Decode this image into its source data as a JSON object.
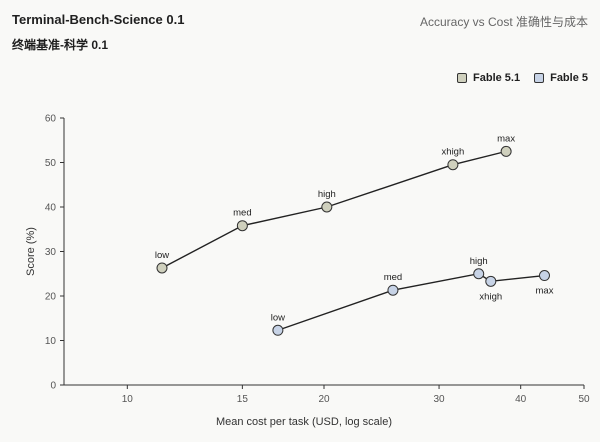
{
  "header": {
    "title": "Terminal-Bench-Science 0.1",
    "subtitle": "终端基准-科学 0.1",
    "right_label": "Accuracy vs Cost  准确性与成本"
  },
  "colors": {
    "fable51": "#cfd0bd",
    "fable5": "#c7d3e6",
    "line": "#222222",
    "grid": "#e9e9e6"
  },
  "chart_data": {
    "type": "line",
    "title": "",
    "xlabel": "Mean cost per task (USD, log scale)",
    "ylabel": "Score (%)",
    "xscale": "log",
    "xlim": [
      8,
      50
    ],
    "ylim": [
      0,
      60
    ],
    "xticks": [
      10,
      15,
      20,
      30,
      40,
      50
    ],
    "yticks": [
      0,
      10,
      20,
      30,
      40,
      50,
      60
    ],
    "grid": false,
    "legend": "top-right",
    "series": [
      {
        "name": "Fable 5.1",
        "points": [
          {
            "label": "low",
            "x": 11.3,
            "y": 26.3
          },
          {
            "label": "med",
            "x": 15.0,
            "y": 35.8
          },
          {
            "label": "high",
            "x": 20.2,
            "y": 40.0
          },
          {
            "label": "xhigh",
            "x": 31.5,
            "y": 49.5
          },
          {
            "label": "max",
            "x": 38.0,
            "y": 52.5
          }
        ]
      },
      {
        "name": "Fable 5",
        "points": [
          {
            "label": "low",
            "x": 17.0,
            "y": 12.3
          },
          {
            "label": "med",
            "x": 25.5,
            "y": 21.3
          },
          {
            "label": "high",
            "x": 34.5,
            "y": 25.0
          },
          {
            "label": "xhigh",
            "x": 36.0,
            "y": 23.3
          },
          {
            "label": "max",
            "x": 43.5,
            "y": 24.6
          }
        ]
      }
    ]
  }
}
